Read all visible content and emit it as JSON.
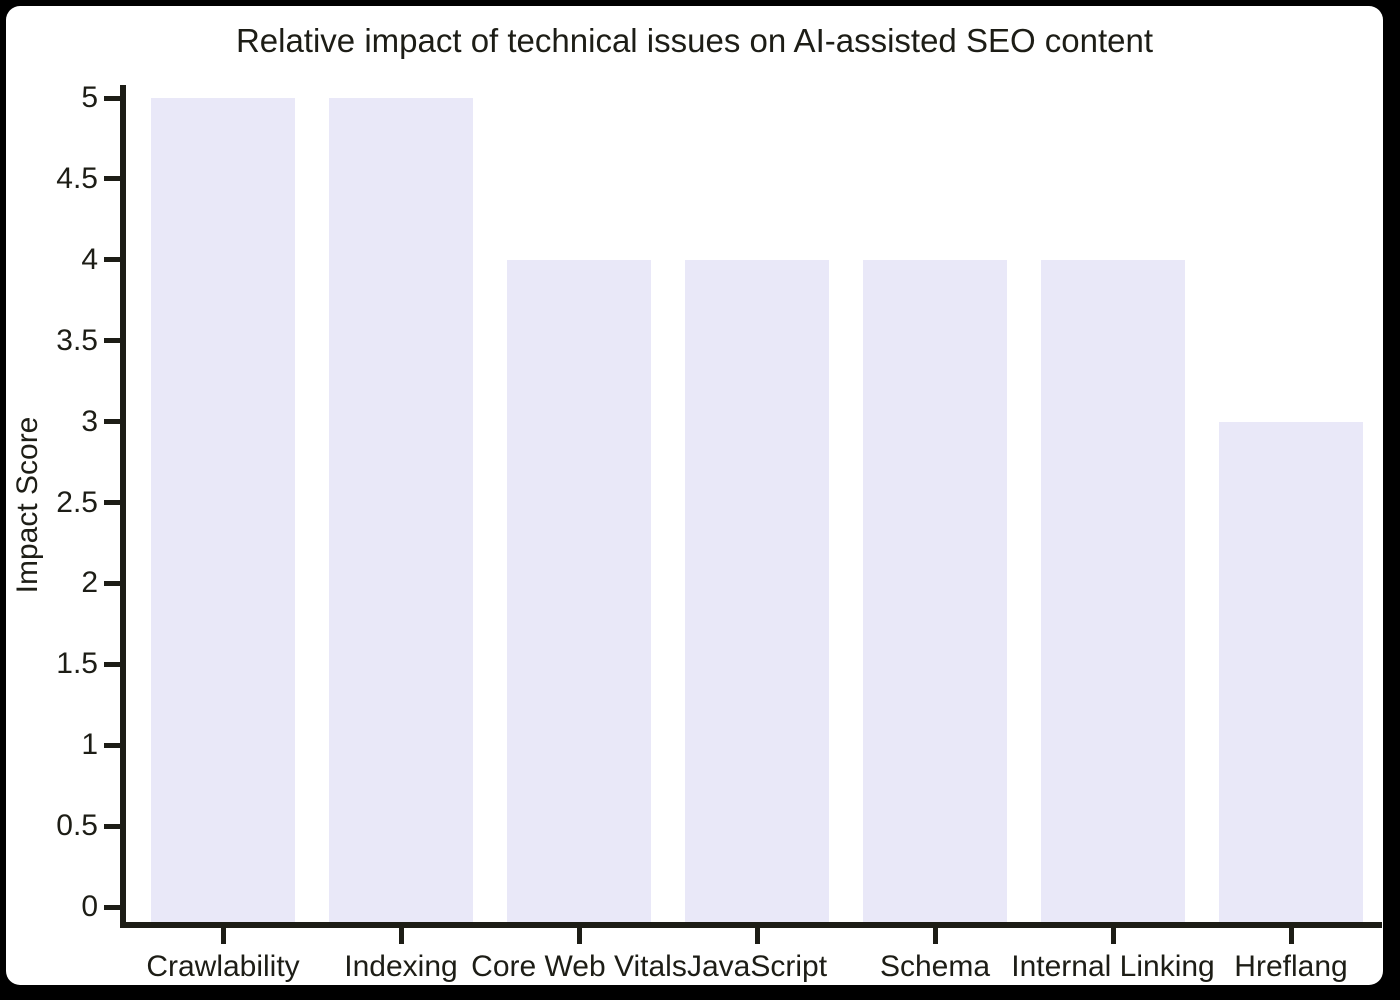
{
  "frame": {
    "page_background": "#000000",
    "card_background": "#ffffff"
  },
  "chart_data": {
    "type": "bar",
    "title": "Relative impact of technical issues on AI-assisted SEO content",
    "xlabel": "",
    "ylabel": "Impact Score",
    "categories": [
      "Crawlability",
      "Indexing",
      "Core Web Vitals",
      "JavaScript",
      "Schema",
      "Internal Linking",
      "Hreflang"
    ],
    "values": [
      5,
      5,
      4,
      4,
      4,
      4,
      3
    ],
    "ylim": [
      0,
      5
    ],
    "ytick_step": 0.5,
    "ytick_labels": [
      "0",
      "0.5",
      "1",
      "1.5",
      "2",
      "2.5",
      "3",
      "3.5",
      "4",
      "4.5",
      "5"
    ],
    "grid": false,
    "legend": false,
    "bar_color": "#e9e8f8",
    "axis_color": "#1d1d16",
    "text_color": "#1d1d16"
  }
}
